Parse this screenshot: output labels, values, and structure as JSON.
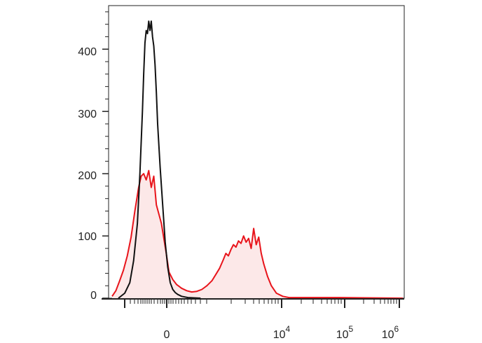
{
  "chart_data": {
    "type": "area",
    "title": "",
    "xlabel": "",
    "ylabel": "",
    "x_scale": "biexponential",
    "ylim": [
      0,
      470
    ],
    "y_ticks": [
      0,
      100,
      200,
      300,
      400
    ],
    "y_tick_labels": [
      "0",
      "100",
      "200",
      "300",
      "400"
    ],
    "x_tick_labels": [
      {
        "base": "0",
        "exp": ""
      },
      {
        "base": "10",
        "exp": "4"
      },
      {
        "base": "10",
        "exp": "5"
      },
      {
        "base": "10",
        "exp": "6"
      }
    ],
    "grid": false,
    "legend": "none",
    "series": [
      {
        "color": "#e8141b",
        "fill": "#fce8e8",
        "points": [
          [
            0,
            3
          ],
          [
            3,
            12
          ],
          [
            6,
            28
          ],
          [
            9,
            45
          ],
          [
            12,
            68
          ],
          [
            15,
            98
          ],
          [
            18,
            140
          ],
          [
            21,
            178
          ],
          [
            23,
            196
          ],
          [
            25,
            200
          ],
          [
            27,
            190
          ],
          [
            29,
            205
          ],
          [
            31,
            178
          ],
          [
            33,
            196
          ],
          [
            35,
            150
          ],
          [
            37,
            135
          ],
          [
            39,
            120
          ],
          [
            41,
            95
          ],
          [
            43,
            70
          ],
          [
            45,
            42
          ],
          [
            48,
            30
          ],
          [
            51,
            22
          ],
          [
            55,
            16
          ],
          [
            59,
            12
          ],
          [
            63,
            10
          ],
          [
            67,
            11
          ],
          [
            71,
            14
          ],
          [
            75,
            20
          ],
          [
            79,
            28
          ],
          [
            82,
            38
          ],
          [
            85,
            48
          ],
          [
            88,
            62
          ],
          [
            90,
            72
          ],
          [
            92,
            68
          ],
          [
            94,
            78
          ],
          [
            96,
            86
          ],
          [
            98,
            82
          ],
          [
            100,
            92
          ],
          [
            102,
            88
          ],
          [
            104,
            100
          ],
          [
            106,
            90
          ],
          [
            108,
            96
          ],
          [
            110,
            80
          ],
          [
            112,
            112
          ],
          [
            114,
            86
          ],
          [
            116,
            98
          ],
          [
            118,
            72
          ],
          [
            120,
            55
          ],
          [
            123,
            35
          ],
          [
            126,
            20
          ],
          [
            130,
            8
          ],
          [
            135,
            3
          ],
          [
            140,
            1
          ],
          [
            180,
            1
          ],
          [
            230,
            0
          ]
        ]
      },
      {
        "color": "#111111",
        "points": [
          [
            5,
            0
          ],
          [
            10,
            8
          ],
          [
            14,
            25
          ],
          [
            17,
            60
          ],
          [
            20,
            120
          ],
          [
            22,
            200
          ],
          [
            24,
            300
          ],
          [
            25,
            360
          ],
          [
            26,
            410
          ],
          [
            27,
            430
          ],
          [
            28,
            425
          ],
          [
            29,
            445
          ],
          [
            30,
            430
          ],
          [
            31,
            445
          ],
          [
            32,
            420
          ],
          [
            33,
            405
          ],
          [
            34,
            375
          ],
          [
            35,
            330
          ],
          [
            36,
            280
          ],
          [
            38,
            210
          ],
          [
            40,
            150
          ],
          [
            42,
            90
          ],
          [
            44,
            50
          ],
          [
            46,
            25
          ],
          [
            48,
            14
          ],
          [
            50,
            9
          ],
          [
            52,
            6
          ],
          [
            55,
            3
          ],
          [
            60,
            1
          ],
          [
            70,
            0
          ]
        ]
      }
    ]
  }
}
